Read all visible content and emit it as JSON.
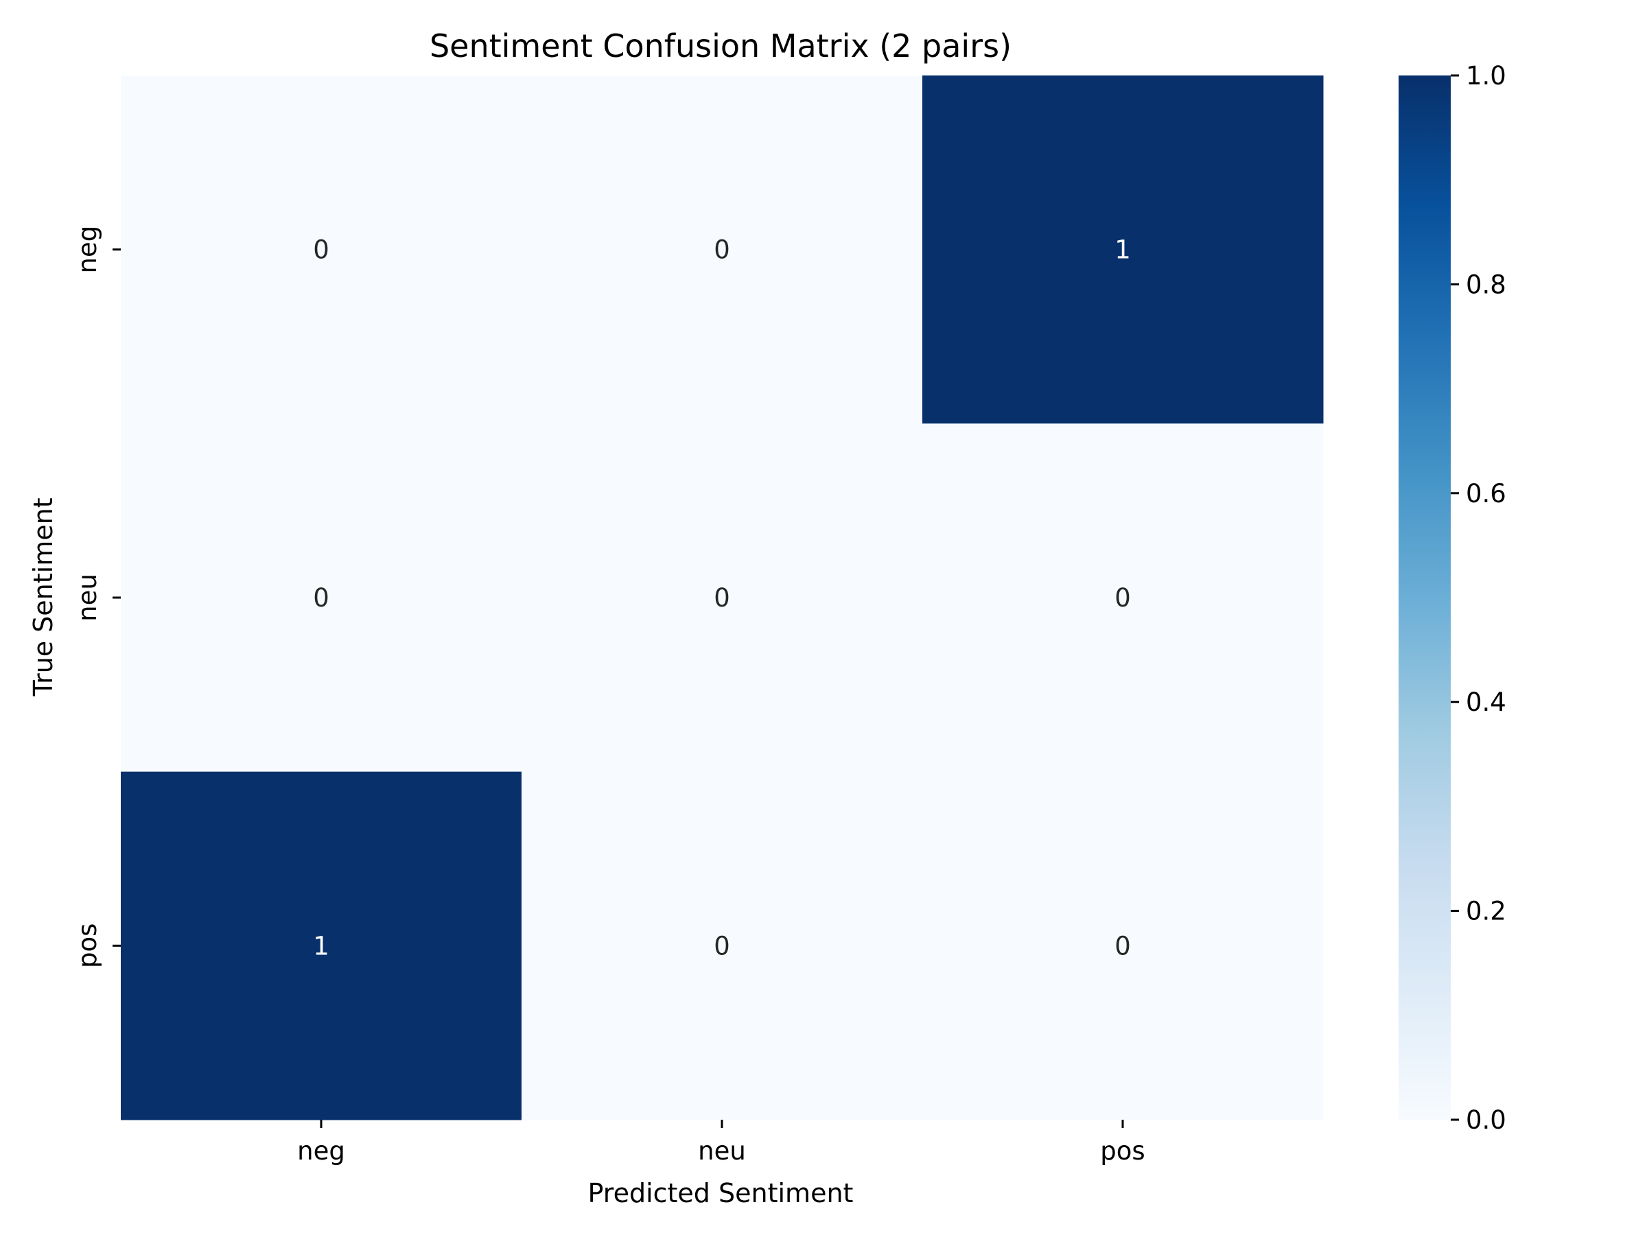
{
  "chart_data": {
    "type": "heatmap",
    "title": "Sentiment Confusion Matrix (2 pairs)",
    "xlabel": "Predicted Sentiment",
    "ylabel": "True Sentiment",
    "x_categories": [
      "neg",
      "neu",
      "pos"
    ],
    "y_categories": [
      "neg",
      "neu",
      "pos"
    ],
    "values": [
      [
        0,
        0,
        1
      ],
      [
        0,
        0,
        0
      ],
      [
        1,
        0,
        0
      ]
    ],
    "colormap": "Blues",
    "colorbar": {
      "range": [
        0.0,
        1.0
      ],
      "ticks": [
        "0.0",
        "0.2",
        "0.4",
        "0.6",
        "0.8",
        "1.0"
      ]
    },
    "colors": {
      "low": "#f7fbff",
      "high": "#08306b",
      "dark_text": "#262626",
      "light_text": "#ffffff"
    }
  }
}
